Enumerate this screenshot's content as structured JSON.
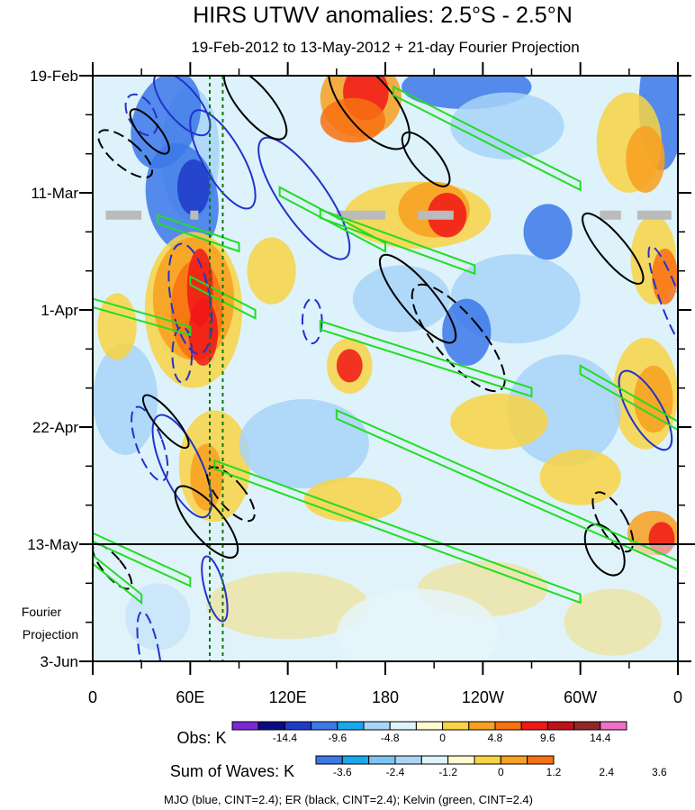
{
  "chart_data": {
    "type": "heatmap",
    "title": "HIRS UTWV anomalies: 2.5°S - 2.5°N",
    "subtitle": "19-Feb-2012 to 13-May-2012 + 21-day Fourier Projection",
    "x_axis": {
      "labels": [
        "0",
        "60E",
        "120E",
        "180",
        "120W",
        "60W",
        "0"
      ],
      "values": [
        0,
        60,
        120,
        180,
        240,
        300,
        360
      ],
      "units": "longitude (degrees east)"
    },
    "y_axis": {
      "labels": [
        "19-Feb",
        "11-Mar",
        "1-Apr",
        "22-Apr",
        "13-May",
        "3-Jun"
      ],
      "values": [
        "2012-02-19",
        "2012-03-11",
        "2012-04-01",
        "2012-04-22",
        "2012-05-13",
        "2012-06-03"
      ],
      "direction": "time increases downward"
    },
    "forecast_boundary_date": "2012-05-13",
    "forecast_label": [
      "Fourier",
      "Projection"
    ],
    "reference_lines_longitude": [
      72,
      80
    ],
    "obs_colorbar": {
      "label": "Obs: K",
      "tick_labels": [
        "-14.4",
        "-9.6",
        "-4.8",
        "0",
        "4.8",
        "9.6",
        "14.4"
      ],
      "colors": [
        "#7a28d8",
        "#0b0b85",
        "#1e3ac8",
        "#3c78e8",
        "#18a8f0",
        "#a8d4f8",
        "#ddf4fa",
        "#fffbd0",
        "#f8d444",
        "#f8a020",
        "#f87010",
        "#f01818",
        "#c0101a",
        "#902828",
        "#f070c8"
      ]
    },
    "waves_colorbar": {
      "label": "Sum of Waves: K",
      "tick_labels": [
        "-3.6",
        "-2.4",
        "-1.2",
        "0",
        "1.2",
        "2.4",
        "3.6"
      ],
      "colors": [
        "#3c78e8",
        "#18a8f0",
        "#7cc4f4",
        "#a8d4f8",
        "#ddf4fa",
        "#fffbd0",
        "#f8d444",
        "#f8a020",
        "#f87010"
      ]
    },
    "footer": "MJO (blue, CINT=2.4); ER (black, CINT=2.4); Kelvin (green, CINT=2.4)",
    "contour_series": [
      {
        "name": "MJO",
        "color": "#2233cc",
        "interval": 2.4
      },
      {
        "name": "ER",
        "color": "#000000",
        "interval": 2.4
      },
      {
        "name": "Kelvin",
        "color": "#22dd22",
        "interval": 2.4
      }
    ]
  }
}
